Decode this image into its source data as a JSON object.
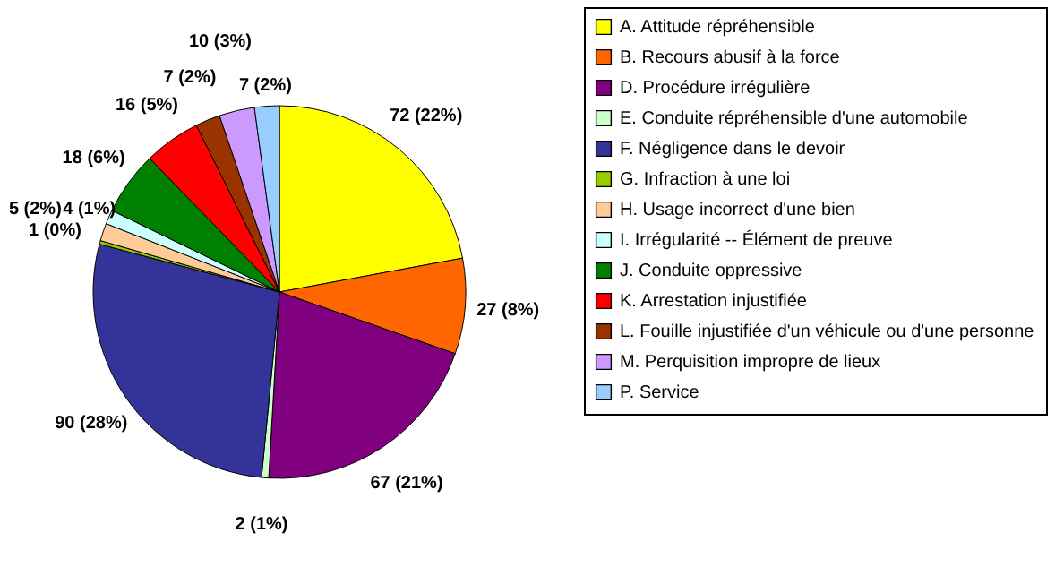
{
  "chart_data": {
    "type": "pie",
    "categories": [
      "A. Attitude répréhensible",
      "B. Recours abusif à la force",
      "D. Procédure irrégulière",
      "E. Conduite répréhensible d'une automobile",
      "F. Négligence dans le devoir",
      "G. Infraction à une loi",
      "H. Usage incorrect d'une bien",
      "I. Irrégularité -- Élément de preuve",
      "J. Conduite oppressive",
      "K. Arrestation injustifiée",
      "L. Fouille injustifiée d'un véhicule ou d'une personne",
      "M. Perquisition impropre de lieux",
      "P. Service"
    ],
    "values": [
      72,
      27,
      67,
      2,
      90,
      1,
      5,
      4,
      18,
      16,
      7,
      10,
      7
    ],
    "colors": [
      "#ffff00",
      "#ff6600",
      "#800080",
      "#ccffcc",
      "#333399",
      "#99cc00",
      "#ffcc99",
      "#ccffff",
      "#008000",
      "#ff0000",
      "#993300",
      "#cc99ff",
      "#99ccff"
    ],
    "value_labels": [
      "72 (22%)",
      "27 (8%)",
      "67 (21%)",
      "2 (1%)",
      "90 (28%)",
      "1 (0%)",
      "5 (2%)",
      "4 (1%)",
      "18 (6%)",
      "16 (5%)",
      "7 (2%)",
      "10 (3%)",
      "7 (2%)"
    ],
    "legend": "right"
  }
}
